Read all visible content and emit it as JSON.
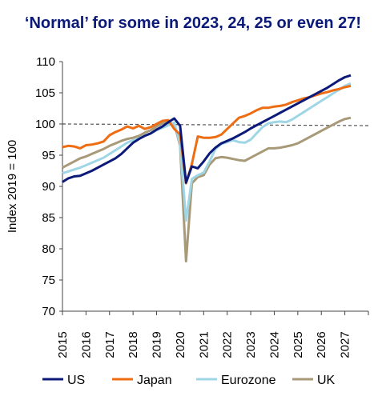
{
  "chart_data": {
    "type": "line",
    "title": "‘Normal’ for some in 2023, 24, 25 or even 27!",
    "xlabel": "",
    "ylabel": "Index 2019 = 100",
    "ylim": [
      70,
      110
    ],
    "xlim": [
      2015,
      2028
    ],
    "yticks": [
      70,
      75,
      80,
      85,
      90,
      95,
      100,
      105,
      110
    ],
    "xticks": [
      "2015",
      "2016",
      "2017",
      "2018",
      "2019",
      "2020",
      "2021",
      "2022",
      "2023",
      "2024",
      "2025",
      "2026",
      "2027"
    ],
    "reference_line": 100,
    "legend_position": "bottom",
    "series": [
      {
        "name": "US",
        "color": "#0b1a78",
        "points": [
          [
            2015.0,
            90.7
          ],
          [
            2015.25,
            91.3
          ],
          [
            2015.5,
            91.6
          ],
          [
            2015.75,
            91.7
          ],
          [
            2016.0,
            92.1
          ],
          [
            2016.25,
            92.5
          ],
          [
            2016.5,
            93.0
          ],
          [
            2016.75,
            93.5
          ],
          [
            2017.0,
            94.0
          ],
          [
            2017.25,
            94.5
          ],
          [
            2017.5,
            95.2
          ],
          [
            2017.75,
            96.1
          ],
          [
            2018.0,
            97.0
          ],
          [
            2018.25,
            97.6
          ],
          [
            2018.5,
            98.1
          ],
          [
            2018.75,
            98.5
          ],
          [
            2019.0,
            99.1
          ],
          [
            2019.25,
            99.6
          ],
          [
            2019.5,
            100.3
          ],
          [
            2019.75,
            100.9
          ],
          [
            2020.0,
            99.7
          ],
          [
            2020.25,
            90.6
          ],
          [
            2020.5,
            93.2
          ],
          [
            2020.75,
            92.9
          ],
          [
            2021.0,
            94.0
          ],
          [
            2021.25,
            95.3
          ],
          [
            2021.5,
            96.2
          ],
          [
            2021.75,
            96.9
          ],
          [
            2022.0,
            97.3
          ],
          [
            2022.25,
            97.7
          ],
          [
            2022.5,
            98.2
          ],
          [
            2022.75,
            98.7
          ],
          [
            2023.0,
            99.3
          ],
          [
            2023.25,
            99.8
          ],
          [
            2023.5,
            100.3
          ],
          [
            2023.75,
            100.8
          ],
          [
            2024.0,
            101.3
          ],
          [
            2024.25,
            101.8
          ],
          [
            2024.5,
            102.3
          ],
          [
            2024.75,
            102.8
          ],
          [
            2025.0,
            103.3
          ],
          [
            2025.25,
            103.8
          ],
          [
            2025.5,
            104.3
          ],
          [
            2025.75,
            104.8
          ],
          [
            2026.0,
            105.3
          ],
          [
            2026.25,
            105.8
          ],
          [
            2026.5,
            106.4
          ],
          [
            2026.75,
            107.0
          ],
          [
            2027.0,
            107.5
          ],
          [
            2027.25,
            107.8
          ]
        ]
      },
      {
        "name": "Japan",
        "color": "#ee6c12",
        "points": [
          [
            2015.0,
            96.3
          ],
          [
            2015.25,
            96.5
          ],
          [
            2015.5,
            96.4
          ],
          [
            2015.75,
            96.1
          ],
          [
            2016.0,
            96.6
          ],
          [
            2016.25,
            96.7
          ],
          [
            2016.5,
            96.9
          ],
          [
            2016.75,
            97.2
          ],
          [
            2017.0,
            98.2
          ],
          [
            2017.25,
            98.7
          ],
          [
            2017.5,
            99.1
          ],
          [
            2017.75,
            99.6
          ],
          [
            2018.0,
            99.3
          ],
          [
            2018.25,
            99.7
          ],
          [
            2018.5,
            99.2
          ],
          [
            2018.75,
            99.5
          ],
          [
            2019.0,
            100.0
          ],
          [
            2019.25,
            100.5
          ],
          [
            2019.5,
            100.6
          ],
          [
            2019.75,
            99.2
          ],
          [
            2020.0,
            98.3
          ],
          [
            2020.25,
            90.5
          ],
          [
            2020.5,
            93.6
          ],
          [
            2020.75,
            98.0
          ],
          [
            2021.0,
            97.8
          ],
          [
            2021.25,
            97.8
          ],
          [
            2021.5,
            97.9
          ],
          [
            2021.75,
            98.3
          ],
          [
            2022.0,
            99.2
          ],
          [
            2022.25,
            100.1
          ],
          [
            2022.5,
            101.0
          ],
          [
            2022.75,
            101.3
          ],
          [
            2023.0,
            101.7
          ],
          [
            2023.25,
            102.2
          ],
          [
            2023.5,
            102.6
          ],
          [
            2023.75,
            102.6
          ],
          [
            2024.0,
            102.8
          ],
          [
            2024.25,
            102.9
          ],
          [
            2024.5,
            103.1
          ],
          [
            2024.75,
            103.5
          ],
          [
            2025.0,
            103.8
          ],
          [
            2025.25,
            104.1
          ],
          [
            2025.5,
            104.3
          ],
          [
            2025.75,
            104.6
          ],
          [
            2026.0,
            104.9
          ],
          [
            2026.25,
            105.1
          ],
          [
            2026.5,
            105.4
          ],
          [
            2026.75,
            105.6
          ],
          [
            2027.0,
            105.9
          ],
          [
            2027.25,
            106.1
          ]
        ]
      },
      {
        "name": "Eurozone",
        "color": "#9fd6e6",
        "points": [
          [
            2015.0,
            92.1
          ],
          [
            2015.25,
            92.4
          ],
          [
            2015.5,
            92.7
          ],
          [
            2015.75,
            93.0
          ],
          [
            2016.0,
            93.4
          ],
          [
            2016.25,
            93.8
          ],
          [
            2016.5,
            94.2
          ],
          [
            2016.75,
            94.6
          ],
          [
            2017.0,
            95.2
          ],
          [
            2017.25,
            95.8
          ],
          [
            2017.5,
            96.4
          ],
          [
            2017.75,
            97.0
          ],
          [
            2018.0,
            97.4
          ],
          [
            2018.25,
            97.7
          ],
          [
            2018.5,
            98.1
          ],
          [
            2018.75,
            98.5
          ],
          [
            2019.0,
            99.0
          ],
          [
            2019.25,
            99.4
          ],
          [
            2019.5,
            99.8
          ],
          [
            2019.75,
            100.2
          ],
          [
            2020.0,
            96.8
          ],
          [
            2020.25,
            84.5
          ],
          [
            2020.5,
            91.2
          ],
          [
            2020.75,
            91.8
          ],
          [
            2021.0,
            92.2
          ],
          [
            2021.25,
            94.0
          ],
          [
            2021.5,
            96.0
          ],
          [
            2021.75,
            96.8
          ],
          [
            2022.0,
            97.1
          ],
          [
            2022.25,
            97.4
          ],
          [
            2022.5,
            97.1
          ],
          [
            2022.75,
            97.0
          ],
          [
            2023.0,
            97.5
          ],
          [
            2023.25,
            98.5
          ],
          [
            2023.5,
            99.5
          ],
          [
            2023.75,
            100.1
          ],
          [
            2024.0,
            100.3
          ],
          [
            2024.25,
            100.4
          ],
          [
            2024.5,
            100.3
          ],
          [
            2024.75,
            100.7
          ],
          [
            2025.0,
            101.3
          ],
          [
            2025.25,
            101.9
          ],
          [
            2025.5,
            102.5
          ],
          [
            2025.75,
            103.1
          ],
          [
            2026.0,
            103.7
          ],
          [
            2026.25,
            104.3
          ],
          [
            2026.5,
            104.9
          ],
          [
            2026.75,
            105.5
          ],
          [
            2027.0,
            106.1
          ],
          [
            2027.25,
            106.5
          ]
        ]
      },
      {
        "name": "UK",
        "color": "#a89a78",
        "points": [
          [
            2015.0,
            93.0
          ],
          [
            2015.25,
            93.5
          ],
          [
            2015.5,
            94.0
          ],
          [
            2015.75,
            94.5
          ],
          [
            2016.0,
            94.8
          ],
          [
            2016.25,
            95.2
          ],
          [
            2016.5,
            95.6
          ],
          [
            2016.75,
            96.0
          ],
          [
            2017.0,
            96.5
          ],
          [
            2017.25,
            96.9
          ],
          [
            2017.5,
            97.3
          ],
          [
            2017.75,
            97.6
          ],
          [
            2018.0,
            97.8
          ],
          [
            2018.25,
            98.1
          ],
          [
            2018.5,
            98.6
          ],
          [
            2018.75,
            99.0
          ],
          [
            2019.0,
            99.6
          ],
          [
            2019.25,
            100.1
          ],
          [
            2019.5,
            100.2
          ],
          [
            2019.75,
            100.0
          ],
          [
            2020.0,
            96.5
          ],
          [
            2020.25,
            78.0
          ],
          [
            2020.5,
            90.5
          ],
          [
            2020.75,
            91.5
          ],
          [
            2021.0,
            91.8
          ],
          [
            2021.25,
            93.5
          ],
          [
            2021.5,
            94.5
          ],
          [
            2021.75,
            94.7
          ],
          [
            2022.0,
            94.6
          ],
          [
            2022.25,
            94.4
          ],
          [
            2022.5,
            94.2
          ],
          [
            2022.75,
            94.1
          ],
          [
            2023.0,
            94.6
          ],
          [
            2023.25,
            95.1
          ],
          [
            2023.5,
            95.6
          ],
          [
            2023.75,
            96.1
          ],
          [
            2024.0,
            96.1
          ],
          [
            2024.25,
            96.2
          ],
          [
            2024.5,
            96.4
          ],
          [
            2024.75,
            96.6
          ],
          [
            2025.0,
            96.9
          ],
          [
            2025.25,
            97.4
          ],
          [
            2025.5,
            97.9
          ],
          [
            2025.75,
            98.4
          ],
          [
            2026.0,
            98.9
          ],
          [
            2026.25,
            99.4
          ],
          [
            2026.5,
            99.9
          ],
          [
            2026.75,
            100.4
          ],
          [
            2027.0,
            100.8
          ],
          [
            2027.25,
            101.0
          ]
        ]
      }
    ]
  }
}
